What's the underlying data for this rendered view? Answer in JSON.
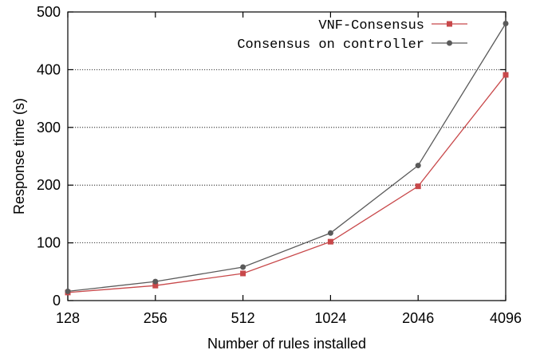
{
  "chart_data": {
    "type": "line",
    "title": "",
    "xlabel": "Number of rules installed",
    "ylabel": "Response time (s)",
    "categories": [
      "128",
      "256",
      "512",
      "1024",
      "2046",
      "4096"
    ],
    "ylim": [
      0,
      500
    ],
    "yticks": [
      0,
      100,
      200,
      300,
      400,
      500
    ],
    "grid": "horizontal",
    "legend_position": "top-right",
    "series": [
      {
        "name": "VNF-Consensus",
        "color": "#c8484a",
        "marker": "square",
        "values": [
          14,
          26,
          47,
          102,
          198,
          391
        ]
      },
      {
        "name": "Consensus on controller",
        "color": "#5a5a5a",
        "marker": "circle",
        "values": [
          16,
          33,
          58,
          117,
          234,
          480
        ]
      }
    ]
  }
}
